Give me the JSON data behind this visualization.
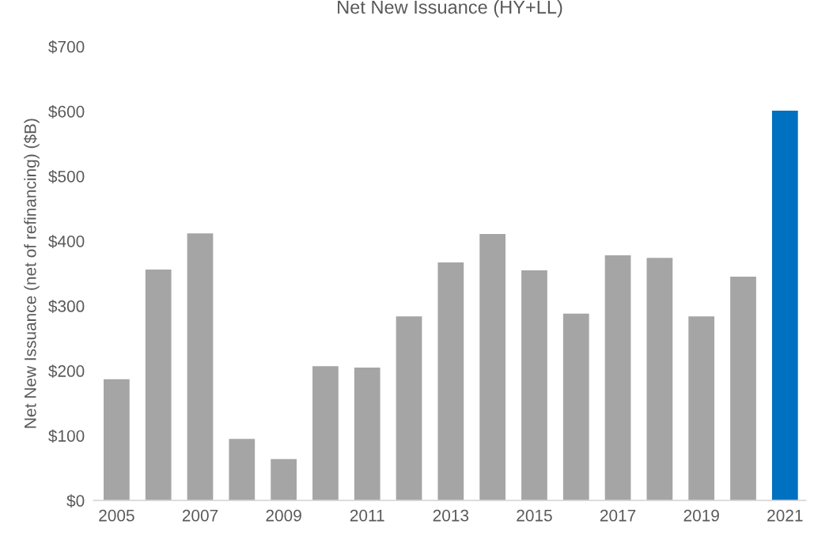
{
  "chart_data": {
    "type": "bar",
    "title": "Net New Issuance (HY+LL)",
    "ylabel": "Net New Issuance (net of refinancing) ($B)",
    "categories": [
      "2005",
      null,
      "2007",
      null,
      "2009",
      null,
      "2011",
      null,
      "2013",
      null,
      "2015",
      null,
      "2017",
      null,
      "2019",
      null,
      "2021"
    ],
    "values": [
      187,
      356,
      412,
      95,
      64,
      207,
      205,
      284,
      367,
      411,
      355,
      288,
      378,
      374,
      284,
      345,
      601
    ],
    "colors": [
      "#a5a5a5",
      "#a5a5a5",
      "#a5a5a5",
      "#a5a5a5",
      "#a5a5a5",
      "#a5a5a5",
      "#a5a5a5",
      "#a5a5a5",
      "#a5a5a5",
      "#a5a5a5",
      "#a5a5a5",
      "#a5a5a5",
      "#a5a5a5",
      "#a5a5a5",
      "#a5a5a5",
      "#a5a5a5",
      "#0070c0"
    ],
    "ylim": [
      0,
      700
    ],
    "yticks": [
      {
        "value": 0,
        "label": "$0"
      },
      {
        "value": 100,
        "label": "$100"
      },
      {
        "value": 200,
        "label": "$200"
      },
      {
        "value": 300,
        "label": "$300"
      },
      {
        "value": 400,
        "label": "$400"
      },
      {
        "value": 500,
        "label": "$500"
      },
      {
        "value": 600,
        "label": "$600"
      },
      {
        "value": 700,
        "label": "$700"
      }
    ],
    "grid": false,
    "legend": false
  }
}
